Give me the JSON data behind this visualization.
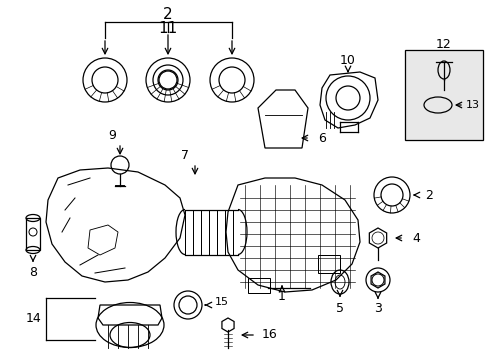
{
  "background_color": "#ffffff",
  "line_color": "#000000",
  "lw": 0.9,
  "fig_w": 4.89,
  "fig_h": 3.6,
  "dpi": 100
}
